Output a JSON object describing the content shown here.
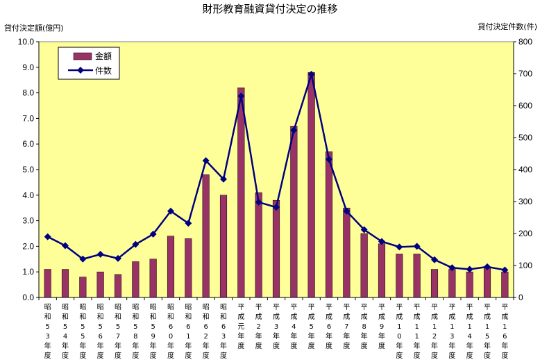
{
  "chart_data": {
    "type": "bar+line",
    "title": "財形教育融資貸付決定の推移",
    "ylabel_left": "貸付決定額(億円)",
    "ylabel_right": "貸付決定件数(件)",
    "ylim_left": [
      0,
      10
    ],
    "ylim_right": [
      0,
      800
    ],
    "yticks_left": [
      "0.0",
      "1.0",
      "2.0",
      "3.0",
      "4.0",
      "5.0",
      "6.0",
      "7.0",
      "8.0",
      "9.0",
      "10.0"
    ],
    "yticks_right": [
      "0",
      "100",
      "200",
      "300",
      "400",
      "500",
      "600",
      "700",
      "800"
    ],
    "legend_position": "top-left",
    "colors": {
      "bar": "#993366",
      "line": "#000080",
      "plot_bg": "#ffff99"
    },
    "categories": [
      "昭和53年度",
      "昭和54年度",
      "昭和55年度",
      "昭和56年度",
      "昭和57年度",
      "昭和58年度",
      "昭和59年度",
      "昭和60年度",
      "昭和61年度",
      "昭和62年度",
      "昭和63年度",
      "平成元年度",
      "平成2年度",
      "平成3年度",
      "平成4年度",
      "平成5年度",
      "平成6年度",
      "平成7年度",
      "平成8年度",
      "平成9年度",
      "平成10年度",
      "平成11年度",
      "平成12年度",
      "平成13年度",
      "平成14年度",
      "平成15年度",
      "平成16年度"
    ],
    "category_labels": [
      [
        "昭",
        "和",
        "5",
        "3",
        "年",
        "度"
      ],
      [
        "昭",
        "和",
        "5",
        "4",
        "年",
        "度"
      ],
      [
        "昭",
        "和",
        "5",
        "5",
        "年",
        "度"
      ],
      [
        "昭",
        "和",
        "5",
        "6",
        "年",
        "度"
      ],
      [
        "昭",
        "和",
        "5",
        "7",
        "年",
        "度"
      ],
      [
        "昭",
        "和",
        "5",
        "8",
        "年",
        "度"
      ],
      [
        "昭",
        "和",
        "5",
        "9",
        "年",
        "度"
      ],
      [
        "昭",
        "和",
        "6",
        "0",
        "年",
        "度"
      ],
      [
        "昭",
        "和",
        "6",
        "1",
        "年",
        "度"
      ],
      [
        "昭",
        "和",
        "6",
        "2",
        "年",
        "度"
      ],
      [
        "昭",
        "和",
        "6",
        "3",
        "年",
        "度"
      ],
      [
        "平",
        "成",
        "元",
        "年",
        "度"
      ],
      [
        "平",
        "成",
        "2",
        "年",
        "度"
      ],
      [
        "平",
        "成",
        "3",
        "年",
        "度"
      ],
      [
        "平",
        "成",
        "4",
        "年",
        "度"
      ],
      [
        "平",
        "成",
        "5",
        "年",
        "度"
      ],
      [
        "平",
        "成",
        "6",
        "年",
        "度"
      ],
      [
        "平",
        "成",
        "7",
        "年",
        "度"
      ],
      [
        "平",
        "成",
        "8",
        "年",
        "度"
      ],
      [
        "平",
        "成",
        "9",
        "年",
        "度"
      ],
      [
        "平",
        "成",
        "1",
        "0",
        "年",
        "度"
      ],
      [
        "平",
        "成",
        "1",
        "1",
        "年",
        "度"
      ],
      [
        "平",
        "成",
        "1",
        "2",
        "年",
        "度"
      ],
      [
        "平",
        "成",
        "1",
        "3",
        "年",
        "度"
      ],
      [
        "平",
        "成",
        "1",
        "4",
        "年",
        "度"
      ],
      [
        "平",
        "成",
        "1",
        "5",
        "年",
        "度"
      ],
      [
        "平",
        "成",
        "1",
        "6",
        "年",
        "度"
      ]
    ],
    "series": [
      {
        "name": "金額",
        "type": "bar",
        "axis": "left",
        "values": [
          1.1,
          1.1,
          0.8,
          1.0,
          0.9,
          1.4,
          1.5,
          2.4,
          2.3,
          4.8,
          4.0,
          8.2,
          4.1,
          3.8,
          6.7,
          8.8,
          5.7,
          3.5,
          2.5,
          2.1,
          1.7,
          1.7,
          1.1,
          1.1,
          1.0,
          1.2,
          1.0
        ]
      },
      {
        "name": "件数",
        "type": "line",
        "axis": "right",
        "values": [
          190,
          162,
          120,
          135,
          122,
          166,
          198,
          270,
          232,
          428,
          370,
          630,
          298,
          282,
          523,
          698,
          432,
          270,
          212,
          175,
          158,
          160,
          118,
          93,
          88,
          96,
          86
        ]
      }
    ]
  }
}
